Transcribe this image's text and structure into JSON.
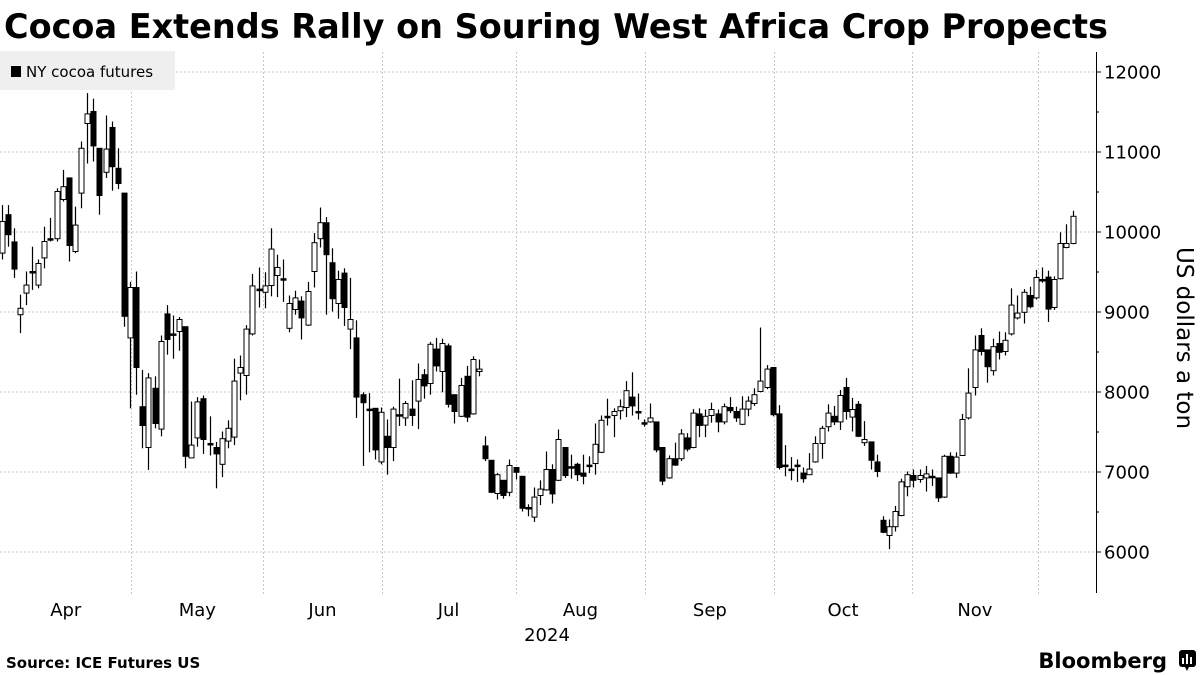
{
  "title": "Cocoa Extends Rally on Souring West Africa Crop Propects",
  "source": "Source: ICE Futures US",
  "brand": "Bloomberg",
  "colors": {
    "up_fill": "#ffffff",
    "down_fill": "#000000",
    "wick": "#000000",
    "legend_bg": "#efefef",
    "grid": "#c8c8c8"
  },
  "chart_data": {
    "type": "candlestick",
    "title": "Cocoa Extends Rally on Souring West Africa Crop Propects",
    "legend": {
      "label": "NY cocoa futures",
      "placement": "top-left"
    },
    "ylabel": "US dollars a ton",
    "xlabel": "2024",
    "ylim": [
      5500,
      12300
    ],
    "yticks": [
      6000,
      7000,
      8000,
      9000,
      10000,
      11000,
      12000
    ],
    "ytick_labels": [
      "6000",
      "7000",
      "8000",
      "9000",
      "10000",
      "11000",
      "12000"
    ],
    "grid": true,
    "candle_fields": [
      "open",
      "high",
      "low",
      "close"
    ],
    "months": [
      {
        "label": "Apr",
        "start_index": -0.2,
        "end_index": 21.2
      },
      {
        "label": "May",
        "start_index": 21.2,
        "end_index": 42.8
      },
      {
        "label": "Jun",
        "start_index": 42.8,
        "end_index": 62.1
      },
      {
        "label": "Jul",
        "start_index": 62.1,
        "end_index": 84.0
      },
      {
        "label": "Aug",
        "start_index": 84.0,
        "end_index": 105.2
      },
      {
        "label": "Sep",
        "start_index": 105.2,
        "end_index": 126.3
      },
      {
        "label": "Oct",
        "start_index": 126.3,
        "end_index": 148.7
      },
      {
        "label": "Nov",
        "start_index": 148.7,
        "end_index": 169.4
      }
    ],
    "candles": [
      [
        9730,
        10330,
        9650,
        10125
      ],
      [
        10210,
        10330,
        9810,
        9960
      ],
      [
        9870,
        10040,
        9420,
        9530
      ],
      [
        8960,
        9210,
        8730,
        9040
      ],
      [
        9230,
        9500,
        9080,
        9330
      ],
      [
        9500,
        9810,
        9270,
        9500
      ],
      [
        9330,
        9650,
        9290,
        9600
      ],
      [
        9670,
        10060,
        9540,
        9875
      ],
      [
        9910,
        10170,
        9875,
        9910
      ],
      [
        9910,
        10540,
        9875,
        10500
      ],
      [
        10400,
        10770,
        10375,
        10560
      ],
      [
        10670,
        10670,
        9625,
        9825
      ],
      [
        9750,
        10310,
        9730,
        10080
      ],
      [
        10480,
        11125,
        10290,
        11040
      ],
      [
        11350,
        11730,
        10850,
        11470
      ],
      [
        11500,
        11660,
        10875,
        11070
      ],
      [
        11040,
        11040,
        10210,
        10450
      ],
      [
        10740,
        11450,
        10670,
        11030
      ],
      [
        11300,
        11375,
        10510,
        10810
      ],
      [
        10790,
        11040,
        10530,
        10600
      ],
      [
        10480,
        10480,
        8810,
        8940
      ],
      [
        8670,
        9370,
        7790,
        9300
      ],
      [
        9300,
        9500,
        7960,
        8300
      ],
      [
        7810,
        8270,
        7290,
        7575
      ],
      [
        7300,
        8230,
        7020,
        8170
      ],
      [
        8040,
        8190,
        7540,
        7600
      ],
      [
        7530,
        8700,
        7440,
        8625
      ],
      [
        8970,
        9080,
        8460,
        8650
      ],
      [
        8720,
        8950,
        8410,
        8720
      ],
      [
        8750,
        8930,
        8510,
        8900
      ],
      [
        8810,
        8810,
        7040,
        7190
      ],
      [
        7170,
        7875,
        7170,
        7330
      ],
      [
        7420,
        7930,
        7310,
        7870
      ],
      [
        7910,
        7950,
        7220,
        7400
      ],
      [
        7350,
        7690,
        7200,
        7350
      ],
      [
        7300,
        7370,
        6790,
        7220
      ],
      [
        7090,
        7500,
        6930,
        7410
      ],
      [
        7380,
        7640,
        7290,
        7540
      ],
      [
        7430,
        8410,
        7330,
        8130
      ],
      [
        8230,
        8450,
        7890,
        8300
      ],
      [
        8200,
        8830,
        7960,
        8780
      ],
      [
        8720,
        9470,
        8700,
        9320
      ],
      [
        9280,
        9550,
        9050,
        9260
      ],
      [
        9240,
        9490,
        9040,
        9320
      ],
      [
        9325,
        10040,
        9190,
        9780
      ],
      [
        9450,
        9710,
        9180,
        9550
      ],
      [
        9410,
        9650,
        9120,
        9410
      ],
      [
        8790,
        9200,
        8740,
        9100
      ],
      [
        9025,
        9260,
        8960,
        9170
      ],
      [
        9130,
        9190,
        8650,
        8920
      ],
      [
        8830,
        9370,
        8820,
        9250
      ],
      [
        9500,
        9980,
        9300,
        9860
      ],
      [
        9910,
        10300,
        9800,
        10110
      ],
      [
        10110,
        10180,
        8960,
        9710
      ],
      [
        9610,
        9790,
        9000,
        9160
      ],
      [
        9100,
        9510,
        8910,
        9400
      ],
      [
        9480,
        9540,
        8820,
        9050
      ],
      [
        8780,
        9420,
        8530,
        8900
      ],
      [
        8670,
        8890,
        7670,
        7930
      ],
      [
        7960,
        7990,
        7070,
        7860
      ],
      [
        7780,
        7980,
        7240,
        7780
      ],
      [
        7790,
        7790,
        7150,
        7270
      ],
      [
        7120,
        7800,
        7090,
        7740
      ],
      [
        7440,
        7650,
        6960,
        7300
      ],
      [
        7300,
        7810,
        7130,
        7780
      ],
      [
        7710,
        8160,
        7570,
        7710
      ],
      [
        7670,
        7880,
        7570,
        7850
      ],
      [
        7780,
        8140,
        7570,
        7700
      ],
      [
        7880,
        8350,
        7530,
        8150
      ],
      [
        8210,
        8280,
        7910,
        8070
      ],
      [
        8100,
        8620,
        7960,
        8590
      ],
      [
        8530,
        8670,
        8250,
        8320
      ],
      [
        8250,
        8660,
        7990,
        8600
      ],
      [
        8570,
        8600,
        7800,
        7840
      ],
      [
        7960,
        7960,
        7600,
        7750
      ],
      [
        7690,
        8170,
        7680,
        8075
      ],
      [
        8190,
        8320,
        7620,
        7680
      ],
      [
        7720,
        8440,
        7710,
        8400
      ],
      [
        8250,
        8400,
        8190,
        8280
      ],
      [
        7320,
        7440,
        7130,
        7160
      ],
      [
        7140,
        7140,
        6730,
        6740
      ],
      [
        6725,
        6980,
        6650,
        6960
      ],
      [
        6890,
        6890,
        6660,
        6700
      ],
      [
        6740,
        7150,
        6690,
        7075
      ],
      [
        7050,
        7050,
        6900,
        6990
      ],
      [
        6940,
        6940,
        6500,
        6540
      ],
      [
        6550,
        6590,
        6440,
        6550
      ],
      [
        6430,
        6800,
        6370,
        6680
      ],
      [
        6700,
        6890,
        6580,
        6780
      ],
      [
        6770,
        7250,
        6760,
        7025
      ],
      [
        7025,
        7090,
        6600,
        6720
      ],
      [
        6890,
        7525,
        6880,
        7400
      ],
      [
        7300,
        7300,
        6920,
        6950
      ],
      [
        7060,
        7210,
        6910,
        7060
      ],
      [
        7090,
        7110,
        6880,
        6960
      ],
      [
        6980,
        7210,
        6840,
        6940
      ],
      [
        7080,
        7190,
        6980,
        7080
      ],
      [
        7100,
        7600,
        6960,
        7340
      ],
      [
        7240,
        7700,
        7230,
        7640
      ],
      [
        7690,
        7910,
        7575,
        7690
      ],
      [
        7700,
        7790,
        7430,
        7750
      ],
      [
        7760,
        7900,
        7650,
        7810
      ],
      [
        7800,
        8130,
        7680,
        8010
      ],
      [
        7930,
        8240,
        7700,
        7820
      ],
      [
        7750,
        7975,
        7650,
        7750
      ],
      [
        7610,
        7650,
        7560,
        7610
      ],
      [
        7620,
        7850,
        7610,
        7670
      ],
      [
        7620,
        7620,
        7240,
        7270
      ],
      [
        7300,
        7300,
        6830,
        6880
      ],
      [
        6920,
        7200,
        6910,
        7160
      ],
      [
        7160,
        7360,
        7070,
        7080
      ],
      [
        7160,
        7530,
        7130,
        7470
      ],
      [
        7420,
        7480,
        7250,
        7280
      ],
      [
        7300,
        7780,
        7290,
        7730
      ],
      [
        7720,
        7790,
        7430,
        7575
      ],
      [
        7580,
        7775,
        7430,
        7690
      ],
      [
        7700,
        7860,
        7610,
        7775
      ],
      [
        7720,
        7775,
        7490,
        7620
      ],
      [
        7620,
        7850,
        7590,
        7810
      ],
      [
        7800,
        7930,
        7730,
        7760
      ],
      [
        7750,
        7810,
        7620,
        7670
      ],
      [
        7590,
        7940,
        7580,
        7780
      ],
      [
        7780,
        7940,
        7690,
        7880
      ],
      [
        7850,
        8040,
        7820,
        7960
      ],
      [
        8000,
        8800,
        7990,
        8130
      ],
      [
        8050,
        8330,
        8030,
        8280
      ],
      [
        8300,
        8300,
        7690,
        7710
      ],
      [
        7720,
        7830,
        7025,
        7050
      ],
      [
        7080,
        7330,
        6940,
        7080
      ],
      [
        7030,
        7180,
        6890,
        7030
      ],
      [
        7080,
        7150,
        6870,
        7080
      ],
      [
        6980,
        7050,
        6860,
        6910
      ],
      [
        6960,
        7230,
        6960,
        7030
      ],
      [
        7120,
        7440,
        7110,
        7350
      ],
      [
        7350,
        7570,
        7160,
        7540
      ],
      [
        7560,
        7840,
        7500,
        7730
      ],
      [
        7690,
        7820,
        7580,
        7620
      ],
      [
        7620,
        8020,
        7520,
        7950
      ],
      [
        8050,
        8170,
        7650,
        7750
      ],
      [
        7680,
        7920,
        7500,
        7775
      ],
      [
        7840,
        7880,
        7430,
        7440
      ],
      [
        7360,
        7630,
        7320,
        7400
      ],
      [
        7370,
        7370,
        7025,
        7140
      ],
      [
        7120,
        7210,
        6930,
        7000
      ],
      [
        6390,
        6440,
        6230,
        6240
      ],
      [
        6200,
        6400,
        6030,
        6310
      ],
      [
        6310,
        6570,
        6250,
        6500
      ],
      [
        6450,
        6910,
        6440,
        6870
      ],
      [
        6810,
        7000,
        6690,
        6960
      ],
      [
        6950,
        7025,
        6800,
        6890
      ],
      [
        6900,
        7025,
        6860,
        6950
      ],
      [
        6920,
        7070,
        6750,
        6970
      ],
      [
        6940,
        7025,
        6820,
        6940
      ],
      [
        6920,
        6920,
        6620,
        6670
      ],
      [
        6680,
        7210,
        6670,
        7190
      ],
      [
        7190,
        7240,
        6970,
        6980
      ],
      [
        6980,
        7240,
        6920,
        7180
      ],
      [
        7200,
        7720,
        7200,
        7650
      ],
      [
        7670,
        8290,
        7650,
        7980
      ],
      [
        8050,
        8700,
        7950,
        8520
      ],
      [
        8700,
        8790,
        8450,
        8500
      ],
      [
        8520,
        8520,
        8110,
        8310
      ],
      [
        8260,
        8660,
        8200,
        8560
      ],
      [
        8600,
        8750,
        8400,
        8490
      ],
      [
        8500,
        8740,
        8450,
        8640
      ],
      [
        8720,
        9290,
        8700,
        9080
      ],
      [
        8920,
        9200,
        8900,
        8980
      ],
      [
        8990,
        9280,
        8850,
        9240
      ],
      [
        9200,
        9310,
        9040,
        9060
      ],
      [
        9170,
        9520,
        9150,
        9425
      ],
      [
        9400,
        9550,
        9360,
        9400
      ],
      [
        9430,
        9510,
        8870,
        9030
      ],
      [
        9050,
        9440,
        9020,
        9400
      ],
      [
        9410,
        9990,
        9400,
        9850
      ],
      [
        9800,
        10090,
        9790,
        9850
      ],
      [
        9850,
        10260,
        9840,
        10190
      ]
    ]
  }
}
